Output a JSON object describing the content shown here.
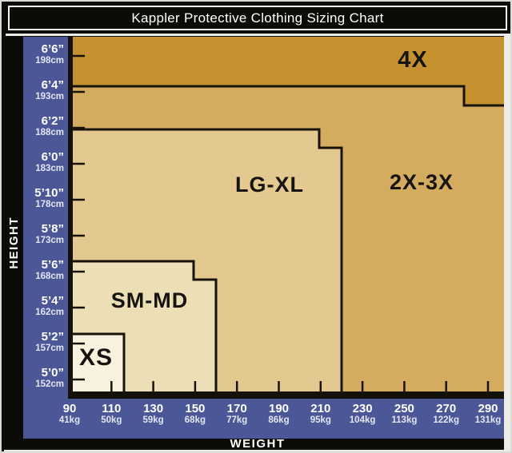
{
  "title": "Kappler Protective Clothing Sizing Chart",
  "x_axis": {
    "title": "WEIGHT"
  },
  "y_axis": {
    "title": "HEIGHT"
  },
  "colors": {
    "axis_band_blue": "#4b5796",
    "frame_black": "#0d0b08",
    "region_border": "#17120a",
    "tick_black": "#17120a"
  },
  "chart_data": {
    "type": "area",
    "subtype": "stepped-sizing-regions",
    "title": "Kappler Protective Clothing Sizing Chart",
    "xlabel": "WEIGHT",
    "ylabel": "HEIGHT",
    "grid": false,
    "legend": "none",
    "x_ticks_lb": [
      90,
      110,
      130,
      150,
      170,
      190,
      210,
      230,
      250,
      270,
      290
    ],
    "x_ticks_kg": [
      41,
      50,
      59,
      68,
      77,
      86,
      95,
      104,
      113,
      122,
      131
    ],
    "y_ticks_ftin": [
      "6’6”",
      "6’4”",
      "6’2”",
      "6’0”",
      "5’10”",
      "5’8”",
      "5’6”",
      "5’4”",
      "5’2”",
      "5’0”"
    ],
    "y_ticks_cm": [
      198,
      193,
      188,
      183,
      178,
      173,
      168,
      162,
      157,
      152
    ],
    "xlim_lb": [
      90,
      298
    ],
    "ylim_ftin": [
      "4’11”",
      "6’7”"
    ],
    "regions": [
      {
        "label": "XS",
        "fill": "#F7F1DE",
        "steps": [
          {
            "max_weight_lb": 115,
            "max_height": "5’2”"
          }
        ]
      },
      {
        "label": "SM-MD",
        "fill": "#ECDFB6",
        "steps": [
          {
            "max_weight_lb": 150,
            "max_height": "5’7”"
          },
          {
            "max_weight_lb": 160,
            "max_height": "5’6”"
          }
        ]
      },
      {
        "label": "LG-XL",
        "fill": "#E3C88F",
        "steps": [
          {
            "max_weight_lb": 210,
            "max_height": "6’2”"
          },
          {
            "max_weight_lb": 220,
            "max_height": "6’1”"
          }
        ]
      },
      {
        "label": "2X-3X",
        "fill": "#D3AC60",
        "steps": [
          {
            "max_weight_lb": 277,
            "max_height": "6’4”"
          },
          {
            "max_weight_lb": 298,
            "max_height": "6’3”"
          }
        ]
      },
      {
        "label": "4X",
        "fill": "#C6922F",
        "steps": [
          {
            "max_weight_lb": 298,
            "max_height": "6’7”"
          }
        ]
      }
    ]
  }
}
